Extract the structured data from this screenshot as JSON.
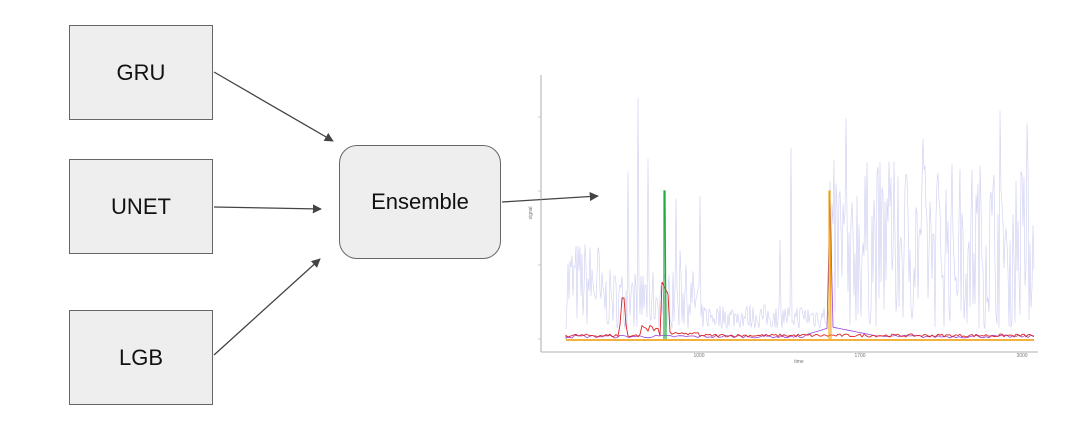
{
  "nodes": {
    "gru": "GRU",
    "unet": "UNET",
    "lgb": "LGB",
    "ensemble": "Ensemble"
  },
  "plot": {
    "x_ticks": [
      "1000",
      "1700",
      "3000"
    ],
    "x_label": "time",
    "y_label": "signal"
  },
  "colors": {
    "box_fill": "#eeeeee",
    "box_border": "#666666",
    "arrow": "#444444",
    "blue_trace": "#c8c8f0",
    "red_trace": "#dd2222",
    "green_trace": "#22aa44",
    "orange_trace": "#ee9900",
    "purple_trace": "#9944dd"
  }
}
